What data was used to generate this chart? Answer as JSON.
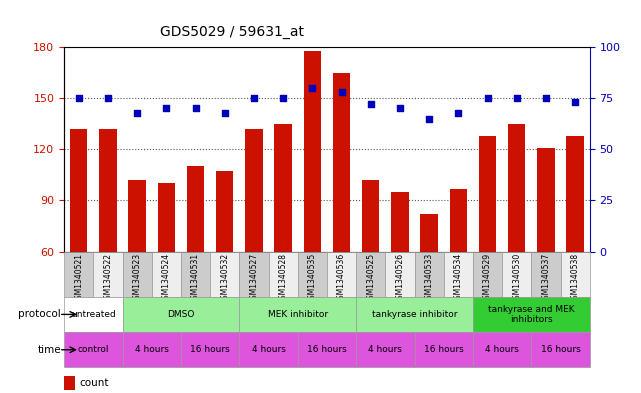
{
  "title": "GDS5029 / 59631_at",
  "samples": [
    "GSM1340521",
    "GSM1340522",
    "GSM1340523",
    "GSM1340524",
    "GSM1340531",
    "GSM1340532",
    "GSM1340527",
    "GSM1340528",
    "GSM1340535",
    "GSM1340536",
    "GSM1340525",
    "GSM1340526",
    "GSM1340533",
    "GSM1340534",
    "GSM1340529",
    "GSM1340530",
    "GSM1340537",
    "GSM1340538"
  ],
  "counts": [
    132,
    132,
    102,
    100,
    110,
    107,
    132,
    135,
    178,
    165,
    102,
    95,
    82,
    97,
    128,
    135,
    121,
    128
  ],
  "percentiles": [
    75,
    75,
    68,
    70,
    70,
    68,
    75,
    75,
    80,
    78,
    72,
    70,
    65,
    68,
    75,
    75,
    75,
    73
  ],
  "ylim_left": [
    60,
    180
  ],
  "ylim_right": [
    0,
    100
  ],
  "yticks_left": [
    60,
    90,
    120,
    150,
    180
  ],
  "yticks_right": [
    0,
    25,
    50,
    75,
    100
  ],
  "bar_color": "#cc1100",
  "dot_color": "#0000bb",
  "background_color": "#ffffff",
  "grid_color": "#555555",
  "label_color_left": "#cc1100",
  "label_color_right": "#0000bb",
  "xticklabel_bg": "#cccccc",
  "proto_colors": {
    "untreated": "#ffffff",
    "DMSO": "#99ee99",
    "MEK inhibitor": "#99ee99",
    "tankyrase inhibitor": "#99ee99",
    "tankyrase and MEK\ninhibitors": "#33cc33"
  },
  "time_color": "#dd55dd",
  "proto_groups": [
    {
      "label": "untreated",
      "start": 0,
      "end": 2
    },
    {
      "label": "DMSO",
      "start": 2,
      "end": 6
    },
    {
      "label": "MEK inhibitor",
      "start": 6,
      "end": 10
    },
    {
      "label": "tankyrase inhibitor",
      "start": 10,
      "end": 14
    },
    {
      "label": "tankyrase and MEK\ninhibitors",
      "start": 14,
      "end": 18
    }
  ],
  "time_groups": [
    {
      "label": "control",
      "start": 0,
      "end": 2
    },
    {
      "label": "4 hours",
      "start": 2,
      "end": 4
    },
    {
      "label": "16 hours",
      "start": 4,
      "end": 6
    },
    {
      "label": "4 hours",
      "start": 6,
      "end": 8
    },
    {
      "label": "16 hours",
      "start": 8,
      "end": 10
    },
    {
      "label": "4 hours",
      "start": 10,
      "end": 12
    },
    {
      "label": "16 hours",
      "start": 12,
      "end": 14
    },
    {
      "label": "4 hours",
      "start": 14,
      "end": 16
    },
    {
      "label": "16 hours",
      "start": 16,
      "end": 18
    }
  ]
}
